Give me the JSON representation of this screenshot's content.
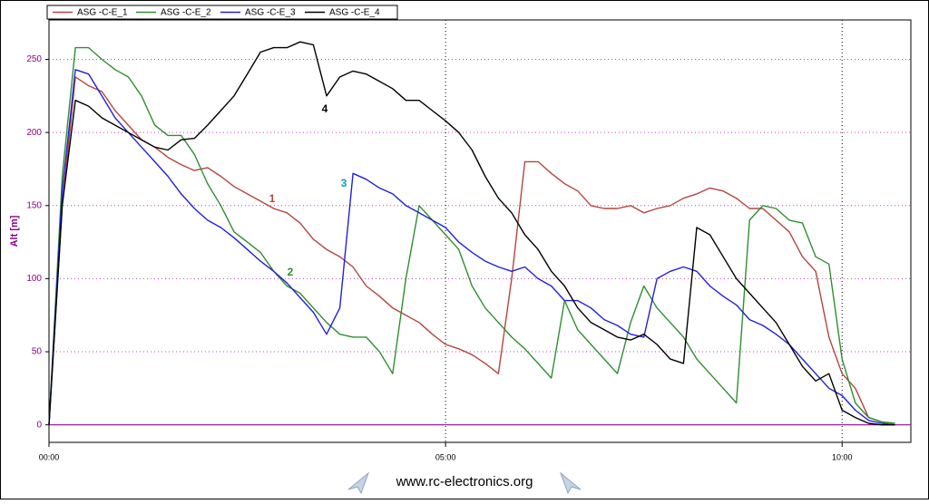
{
  "chart_data": {
    "type": "line",
    "y_label": "Alt [m]",
    "footer": "www.rc-electronics.org",
    "grid": true,
    "legend": "top-left",
    "xlim": [
      0,
      652
    ],
    "ylim": [
      -12,
      277
    ],
    "xticks": [
      {
        "value": 0,
        "label": "00:00"
      },
      {
        "value": 300,
        "label": "05:00"
      },
      {
        "value": 600,
        "label": "10:00"
      }
    ],
    "yticks": [
      0,
      50,
      100,
      150,
      200,
      250
    ],
    "x": [
      0,
      10,
      20,
      30,
      40,
      50,
      60,
      70,
      80,
      90,
      100,
      110,
      120,
      130,
      140,
      150,
      160,
      170,
      180,
      190,
      200,
      210,
      220,
      230,
      240,
      250,
      260,
      270,
      280,
      290,
      300,
      310,
      320,
      330,
      340,
      350,
      360,
      370,
      380,
      390,
      400,
      410,
      420,
      430,
      440,
      450,
      460,
      470,
      480,
      490,
      500,
      510,
      520,
      530,
      540,
      550,
      560,
      570,
      580,
      590,
      600,
      610,
      620,
      630,
      640
    ],
    "series": [
      {
        "name": "ASG -C-E_1",
        "color": "#b5453f",
        "values": [
          0,
          150,
          238,
          232,
          228,
          215,
          205,
          195,
          190,
          183,
          178,
          174,
          176,
          170,
          163,
          158,
          153,
          148,
          145,
          138,
          127,
          120,
          115,
          108,
          95,
          88,
          80,
          75,
          70,
          62,
          55,
          52,
          48,
          42,
          35,
          100,
          180,
          180,
          172,
          165,
          160,
          150,
          148,
          148,
          150,
          145,
          148,
          150,
          155,
          158,
          162,
          160,
          155,
          148,
          148,
          140,
          132,
          115,
          105,
          60,
          35,
          25,
          5,
          2,
          1
        ]
      },
      {
        "name": "ASG -C-E_2",
        "color": "#2f8f2f",
        "values": [
          0,
          170,
          258,
          258,
          250,
          243,
          238,
          225,
          205,
          198,
          198,
          185,
          165,
          150,
          132,
          125,
          118,
          105,
          95,
          90,
          80,
          70,
          62,
          60,
          60,
          50,
          35,
          100,
          150,
          140,
          130,
          120,
          95,
          80,
          70,
          60,
          52,
          42,
          32,
          85,
          65,
          55,
          45,
          35,
          70,
          95,
          80,
          70,
          60,
          45,
          35,
          25,
          15,
          140,
          150,
          148,
          140,
          138,
          115,
          110,
          45,
          15,
          5,
          2,
          1
        ]
      },
      {
        "name": "ASG -C-E_3",
        "color": "#2020e0",
        "values": [
          0,
          160,
          243,
          240,
          225,
          210,
          200,
          190,
          180,
          170,
          158,
          148,
          140,
          135,
          128,
          120,
          112,
          105,
          97,
          87,
          77,
          62,
          80,
          172,
          168,
          162,
          158,
          150,
          145,
          140,
          135,
          125,
          118,
          112,
          108,
          105,
          108,
          100,
          95,
          85,
          85,
          80,
          72,
          68,
          62,
          60,
          100,
          105,
          108,
          105,
          95,
          88,
          82,
          72,
          68,
          62,
          55,
          45,
          35,
          25,
          20,
          10,
          3,
          1,
          0
        ]
      },
      {
        "name": "ASG -C-E_4",
        "color": "#000000",
        "values": [
          0,
          150,
          222,
          218,
          210,
          205,
          200,
          195,
          190,
          188,
          195,
          196,
          205,
          215,
          225,
          240,
          255,
          258,
          258,
          262,
          260,
          225,
          238,
          242,
          240,
          235,
          230,
          222,
          222,
          215,
          208,
          200,
          188,
          170,
          155,
          145,
          130,
          120,
          105,
          95,
          80,
          70,
          65,
          60,
          58,
          62,
          55,
          45,
          42,
          135,
          130,
          115,
          100,
          90,
          80,
          70,
          55,
          40,
          30,
          35,
          10,
          5,
          1,
          0,
          0
        ]
      }
    ],
    "annotations": [
      {
        "text": "1",
        "color": "#b5453f"
      },
      {
        "text": "2",
        "color": "#2f8f2f"
      },
      {
        "text": "3",
        "color": "#0aa0c0"
      },
      {
        "text": "4",
        "color": "#000000"
      }
    ]
  }
}
